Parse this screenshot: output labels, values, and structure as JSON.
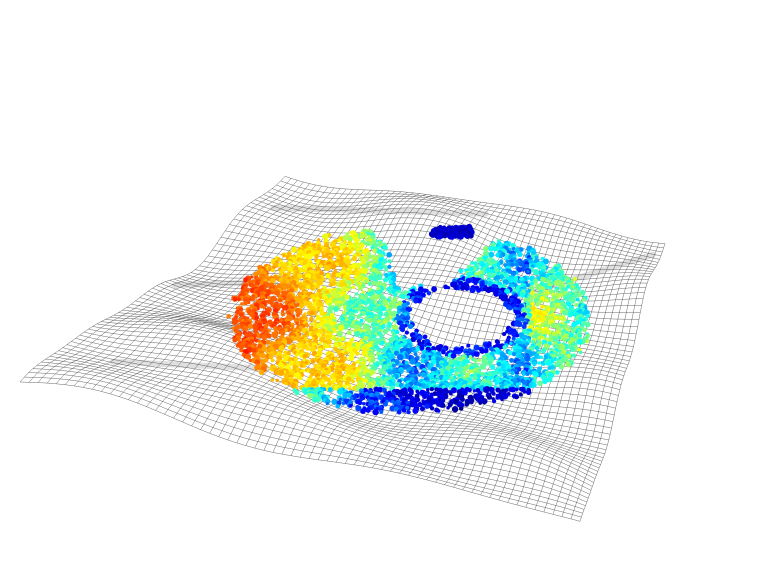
{
  "scene": {
    "kind": "3d-lidar-point-cloud-over-terrain-mesh",
    "background_color": "#ffffff",
    "mesh_color": "#3a3a3a",
    "point_colormap": "jet",
    "colormap_stops": [
      "#00008f",
      "#0000ff",
      "#00ffff",
      "#ffff00",
      "#ff8000",
      "#ff0000"
    ]
  }
}
